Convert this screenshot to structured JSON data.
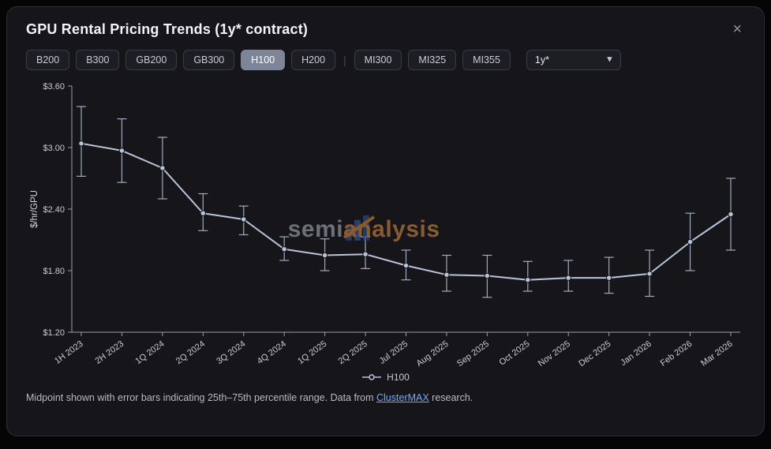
{
  "window": {
    "title": "GPU Rental Pricing Trends (1y* contract)",
    "close_label": "×"
  },
  "filters": {
    "gpu_buttons_nvidia": [
      {
        "label": "B200",
        "selected": false
      },
      {
        "label": "B300",
        "selected": false
      },
      {
        "label": "GB200",
        "selected": false
      },
      {
        "label": "GB300",
        "selected": false
      },
      {
        "label": "H100",
        "selected": true
      },
      {
        "label": "H200",
        "selected": false
      }
    ],
    "divider": "|",
    "gpu_buttons_amd": [
      {
        "label": "MI300",
        "selected": false
      },
      {
        "label": "MI325",
        "selected": false
      },
      {
        "label": "MI355",
        "selected": false
      }
    ],
    "contract_select": {
      "value": "1y*",
      "options": [
        "1y*"
      ]
    }
  },
  "watermark": {
    "part1": "semi",
    "part2": "analysis"
  },
  "legend": {
    "items": [
      "H100"
    ]
  },
  "footer": {
    "text_before": "Midpoint shown with error bars indicating 25th–75th percentile range. Data from ",
    "link": "ClusterMAX",
    "text_after": " research."
  },
  "colors": {
    "series": "#b9c5d9",
    "link": "#79a7ff",
    "selected_chip_bg": "#7e8599",
    "card_bg": "#15151a"
  },
  "chart_data": {
    "type": "line",
    "title": "GPU Rental Pricing Trends (1y* contract)",
    "xlabel": "",
    "ylabel": "$/hr/GPU",
    "ylim": [
      1.2,
      3.6
    ],
    "yticks": [
      3.6,
      3.0,
      2.4,
      1.8,
      1.2
    ],
    "ytick_labels": [
      "$3.60",
      "$3.00",
      "$2.40",
      "$1.80",
      "$1.20"
    ],
    "grid": false,
    "legend_position": "bottom",
    "error_bars": "25th-75th percentile",
    "categories": [
      "1H 2023",
      "2H 2023",
      "1Q 2024",
      "2Q 2024",
      "3Q 2024",
      "4Q 2024",
      "1Q 2025",
      "2Q 2025",
      "Jul 2025",
      "Aug 2025",
      "Sep 2025",
      "Oct 2025",
      "Nov 2025",
      "Dec 2025",
      "Jan 2026",
      "Feb 2026",
      "Mar 2026"
    ],
    "series": [
      {
        "name": "H100",
        "color": "#b9c5d9",
        "midpoints": [
          3.04,
          2.97,
          2.8,
          2.36,
          2.3,
          2.01,
          1.95,
          1.96,
          1.85,
          1.76,
          1.75,
          1.71,
          1.73,
          1.73,
          1.77,
          2.08,
          2.35
        ],
        "p25": [
          2.72,
          2.66,
          2.5,
          2.19,
          2.15,
          1.9,
          1.8,
          1.82,
          1.71,
          1.6,
          1.54,
          1.6,
          1.6,
          1.58,
          1.55,
          1.8,
          2.0
        ],
        "p75": [
          3.4,
          3.28,
          3.1,
          2.55,
          2.43,
          2.13,
          2.11,
          2.13,
          2.0,
          1.95,
          1.95,
          1.89,
          1.9,
          1.93,
          2.0,
          2.36,
          2.7
        ]
      }
    ]
  }
}
